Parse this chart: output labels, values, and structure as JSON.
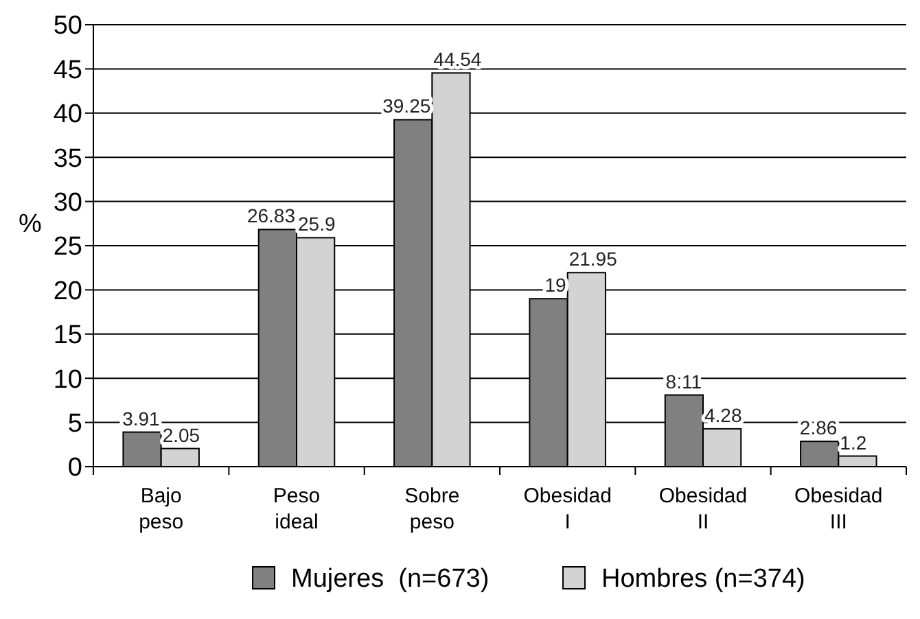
{
  "chart_data": {
    "type": "bar",
    "ylabel": "%",
    "categories": [
      "Bajo\npeso",
      "Peso\nideal",
      "Sobre\npeso",
      "Obesidad\nI",
      "Obesidad\nII",
      "Obesidad\nIII"
    ],
    "series": [
      {
        "name": "Mujeres  (n=673)",
        "color": "#808080",
        "values": [
          3.91,
          26.83,
          39.25,
          19,
          8.11,
          2.86
        ]
      },
      {
        "name": "Hombres (n=374)",
        "color": "#d3d3d3",
        "values": [
          2.05,
          25.9,
          44.54,
          21.95,
          4.28,
          1.2
        ]
      }
    ],
    "data_labels": true,
    "ylim": [
      0,
      50
    ],
    "yticks": [
      0,
      5,
      10,
      15,
      20,
      25,
      30,
      35,
      40,
      45,
      50
    ],
    "grid": "y",
    "legend": "bottom"
  }
}
